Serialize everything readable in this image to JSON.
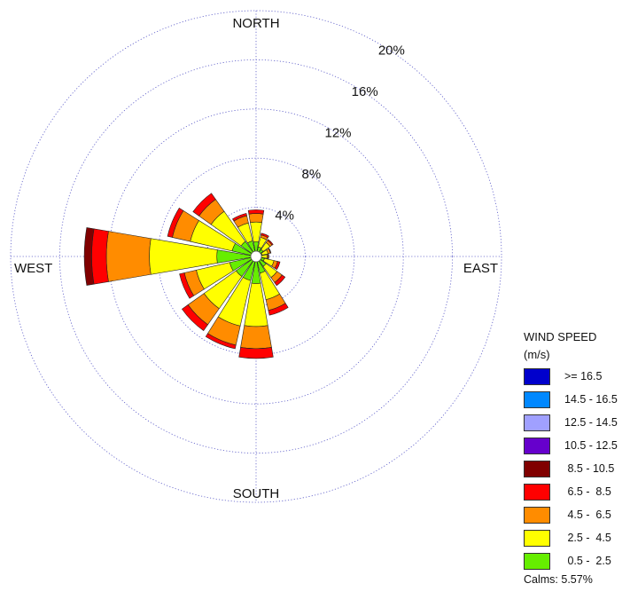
{
  "chart_data": {
    "type": "wind_rose",
    "directions": [
      "N",
      "NNE",
      "NE",
      "ENE",
      "E",
      "ESE",
      "SE",
      "SSE",
      "S",
      "SSW",
      "SW",
      "WSW",
      "W",
      "WNW",
      "NW",
      "NNW"
    ],
    "direction_labels": {
      "north": "NORTH",
      "east": "EAST",
      "south": "SOUTH",
      "west": "WEST"
    },
    "ring_values": [
      4,
      8,
      12,
      16,
      20
    ],
    "ring_labels": [
      "4%",
      "8%",
      "12%",
      "16%",
      "20%"
    ],
    "radial_max": 20,
    "series": [
      {
        "name": "0.5 - 2.5",
        "color": "#66ee00",
        "values": [
          1.2,
          0.8,
          0.7,
          0.5,
          0.4,
          0.7,
          1.0,
          1.4,
          2.2,
          2.0,
          2.0,
          2.2,
          3.2,
          2.0,
          1.5,
          1.3
        ]
      },
      {
        "name": "2.5 - 4.5",
        "color": "#ffff00",
        "values": [
          1.6,
          0.8,
          0.7,
          0.5,
          0.5,
          0.8,
          1.1,
          2.2,
          3.5,
          3.8,
          3.2,
          2.8,
          5.5,
          3.5,
          3.0,
          1.5
        ]
      },
      {
        "name": "4.5 - 6.5",
        "color": "#ff8c00",
        "values": [
          0.7,
          0.2,
          0.2,
          0.2,
          0.1,
          0.3,
          0.5,
          0.9,
          1.8,
          1.6,
          1.6,
          1.0,
          3.5,
          1.5,
          1.2,
          0.6
        ]
      },
      {
        "name": "6.5 - 8.5",
        "color": "#ff0000",
        "values": [
          0.3,
          0.15,
          0.1,
          0.05,
          0.05,
          0.2,
          0.3,
          0.4,
          0.8,
          0.3,
          0.6,
          0.4,
          1.2,
          0.4,
          0.6,
          0.2
        ]
      },
      {
        "name": "8.5 - 10.5",
        "color": "#800000",
        "values": [
          0.0,
          0.0,
          0.0,
          0.0,
          0.0,
          0.0,
          0.0,
          0.0,
          0.0,
          0.0,
          0.0,
          0.0,
          0.6,
          0.0,
          0.0,
          0.0
        ]
      },
      {
        "name": "10.5 - 12.5",
        "color": "#6600cc",
        "values": [
          0,
          0,
          0,
          0,
          0,
          0,
          0,
          0,
          0,
          0,
          0,
          0,
          0,
          0,
          0,
          0
        ]
      },
      {
        "name": "12.5 - 14.5",
        "color": "#a0a0ff",
        "values": [
          0,
          0,
          0,
          0,
          0,
          0,
          0,
          0,
          0,
          0,
          0,
          0,
          0,
          0,
          0,
          0
        ]
      },
      {
        "name": "14.5 - 16.5",
        "color": "#0088ff",
        "values": [
          0,
          0,
          0,
          0,
          0,
          0,
          0,
          0,
          0,
          0,
          0,
          0,
          0,
          0,
          0,
          0
        ]
      },
      {
        "name": ">= 16.5",
        "color": "#0000cc",
        "values": [
          0,
          0,
          0,
          0,
          0,
          0,
          0,
          0,
          0,
          0,
          0,
          0,
          0,
          0,
          0,
          0
        ]
      }
    ]
  },
  "legend": {
    "title_line1": "WIND SPEED",
    "title_line2": "(m/s)",
    "items": [
      {
        "label": ">= 16.5",
        "color": "#0000cc"
      },
      {
        "label": "14.5 - 16.5",
        "color": "#0088ff"
      },
      {
        "label": "12.5 - 14.5",
        "color": "#a0a0ff"
      },
      {
        "label": "10.5 - 12.5",
        "color": "#6600cc"
      },
      {
        "label": " 8.5 - 10.5",
        "color": "#800000"
      },
      {
        "label": " 6.5 -  8.5",
        "color": "#ff0000"
      },
      {
        "label": " 4.5 -  6.5",
        "color": "#ff8c00"
      },
      {
        "label": " 2.5 -  4.5",
        "color": "#ffff00"
      },
      {
        "label": " 0.5 -  2.5",
        "color": "#66ee00"
      }
    ],
    "calms": "Calms: 5.57%"
  }
}
